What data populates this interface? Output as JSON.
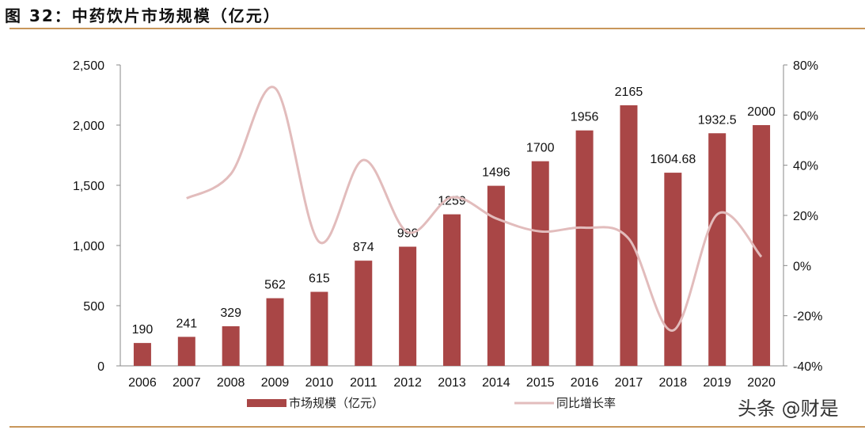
{
  "title": "图 32：中药饮片市场规模（亿元）",
  "watermark": "头条 @财是",
  "chart_data": {
    "type": "bar+line",
    "categories": [
      "2006",
      "2007",
      "2008",
      "2009",
      "2010",
      "2011",
      "2012",
      "2013",
      "2014",
      "2015",
      "2016",
      "2017",
      "2018",
      "2019",
      "2020"
    ],
    "series": [
      {
        "name": "市场规模（亿元）",
        "type": "bar",
        "axis": "left",
        "color": "#a94646",
        "values": [
          190,
          241,
          329,
          562,
          615,
          874,
          990,
          1259,
          1496,
          1700,
          1956,
          2165,
          1604.68,
          1932.5,
          2000
        ],
        "labels": [
          "190",
          "241",
          "329",
          "562",
          "615",
          "874",
          "990",
          "1259",
          "1496",
          "1700",
          "1956",
          "2165",
          "1604.68",
          "1932.5",
          "2000"
        ]
      },
      {
        "name": "同比增长率",
        "type": "line",
        "axis": "right",
        "color": "#e2bcbc",
        "values": [
          null,
          26.8,
          36.5,
          70.8,
          9.4,
          42.1,
          13.3,
          27.2,
          18.8,
          13.6,
          15.1,
          10.7,
          -25.9,
          20.4,
          3.5
        ]
      }
    ],
    "yleft": {
      "min": 0,
      "max": 2500,
      "ticks": [
        "0",
        "500",
        "1,000",
        "1,500",
        "2,000",
        "2,500"
      ]
    },
    "yright": {
      "min": -40,
      "max": 80,
      "ticks": [
        "-40%",
        "-20%",
        "0%",
        "20%",
        "40%",
        "60%",
        "80%"
      ]
    },
    "grid": false,
    "legend": "bottom"
  }
}
